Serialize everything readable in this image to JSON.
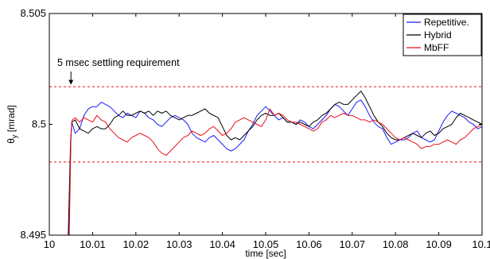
{
  "chart_data": {
    "type": "line",
    "xlabel": "time [sec]",
    "ylabel": "θy [mrad]",
    "ylabel_main": "θ",
    "ylabel_sub": "y",
    "ylabel_unit": " [mrad]",
    "xlim": [
      10.0,
      10.1
    ],
    "ylim": [
      8.495,
      8.505
    ],
    "x_ticks": [
      10.0,
      10.01,
      10.02,
      10.03,
      10.04,
      10.05,
      10.06,
      10.07,
      10.08,
      10.09,
      10.1
    ],
    "x_tick_labels": [
      "10",
      "10.01",
      "10.02",
      "10.03",
      "10.04",
      "10.05",
      "10.06",
      "10.07",
      "10.08",
      "10.09",
      "10.1"
    ],
    "y_ticks": [
      8.495,
      8.5,
      8.505
    ],
    "y_tick_labels": [
      "8.495",
      "8.5",
      "8.505"
    ],
    "grid": false,
    "legend_position": "top-right",
    "reference_lines": [
      {
        "y": 8.5017,
        "style": "dashed",
        "color": "#e8101a"
      },
      {
        "y": 8.4983,
        "style": "dashed",
        "color": "#e8101a"
      }
    ],
    "annotation": {
      "text": "5 msec settling requirement",
      "arrow_x": 10.005,
      "arrow_y": 8.50175
    },
    "series": [
      {
        "name": "Repetitive.",
        "color": "#1a1aff",
        "x": [
          10.0045,
          10.005,
          10.0052,
          10.006,
          10.007,
          10.008,
          10.009,
          10.01,
          10.011,
          10.012,
          10.013,
          10.014,
          10.015,
          10.016,
          10.017,
          10.018,
          10.019,
          10.02,
          10.021,
          10.022,
          10.023,
          10.024,
          10.025,
          10.026,
          10.027,
          10.028,
          10.029,
          10.03,
          10.031,
          10.032,
          10.033,
          10.034,
          10.035,
          10.036,
          10.037,
          10.038,
          10.039,
          10.04,
          10.041,
          10.042,
          10.043,
          10.044,
          10.045,
          10.046,
          10.047,
          10.048,
          10.049,
          10.05,
          10.051,
          10.052,
          10.053,
          10.054,
          10.055,
          10.056,
          10.057,
          10.058,
          10.059,
          10.06,
          10.061,
          10.062,
          10.063,
          10.064,
          10.065,
          10.066,
          10.067,
          10.068,
          10.069,
          10.07,
          10.071,
          10.072,
          10.073,
          10.074,
          10.075,
          10.076,
          10.077,
          10.078,
          10.079,
          10.08,
          10.081,
          10.082,
          10.083,
          10.084,
          10.085,
          10.086,
          10.087,
          10.088,
          10.089,
          10.09,
          10.091,
          10.092,
          10.093,
          10.094,
          10.095,
          10.096,
          10.097,
          10.098,
          10.099,
          10.1
        ],
        "y": [
          8.4953,
          8.4994,
          8.5001,
          8.4996,
          8.4998,
          8.5004,
          8.5007,
          8.5008,
          8.5008,
          8.501,
          8.5009,
          8.5008,
          8.5006,
          8.5004,
          8.5003,
          8.5005,
          8.5004,
          8.5003,
          8.5006,
          8.5005,
          8.5003,
          8.5002,
          8.5,
          8.4999,
          8.5001,
          8.5003,
          8.5004,
          8.5003,
          8.5002,
          8.5,
          8.4996,
          8.4994,
          8.4993,
          8.4992,
          8.4994,
          8.4995,
          8.4993,
          8.4991,
          8.4989,
          8.4988,
          8.4989,
          8.4991,
          8.4993,
          8.4997,
          8.5,
          8.5004,
          8.5006,
          8.5008,
          8.5006,
          8.5004,
          8.5002,
          8.5003,
          8.5001,
          8.5001,
          8.5,
          8.5002,
          8.5001,
          8.4999,
          8.4998,
          8.5,
          8.5002,
          8.5004,
          8.5007,
          8.5009,
          8.5008,
          8.5006,
          8.5004,
          8.5007,
          8.501,
          8.5011,
          8.5008,
          8.5004,
          8.5001,
          8.4999,
          8.4998,
          8.4994,
          8.4991,
          8.4992,
          8.4993,
          8.4993,
          8.4994,
          8.4996,
          8.4997,
          8.4994,
          8.4993,
          8.4992,
          8.4993,
          8.4997,
          8.5001,
          8.5004,
          8.5006,
          8.5005,
          8.5004,
          8.5003,
          8.5001,
          8.5,
          8.4998,
          8.4999
        ]
      },
      {
        "name": "Hybrid",
        "color": "#000000",
        "x": [
          10.0044,
          10.0049,
          10.0052,
          10.006,
          10.007,
          10.008,
          10.009,
          10.01,
          10.011,
          10.012,
          10.013,
          10.014,
          10.015,
          10.016,
          10.017,
          10.018,
          10.019,
          10.02,
          10.021,
          10.022,
          10.023,
          10.024,
          10.025,
          10.026,
          10.027,
          10.028,
          10.029,
          10.03,
          10.031,
          10.032,
          10.033,
          10.034,
          10.035,
          10.036,
          10.037,
          10.038,
          10.039,
          10.04,
          10.041,
          10.042,
          10.043,
          10.044,
          10.045,
          10.046,
          10.047,
          10.048,
          10.049,
          10.05,
          10.051,
          10.052,
          10.053,
          10.054,
          10.055,
          10.056,
          10.057,
          10.058,
          10.059,
          10.06,
          10.061,
          10.062,
          10.063,
          10.064,
          10.065,
          10.066,
          10.067,
          10.068,
          10.069,
          10.07,
          10.071,
          10.072,
          10.073,
          10.074,
          10.075,
          10.076,
          10.077,
          10.078,
          10.079,
          10.08,
          10.081,
          10.082,
          10.083,
          10.084,
          10.085,
          10.086,
          10.087,
          10.088,
          10.089,
          10.09,
          10.091,
          10.092,
          10.093,
          10.094,
          10.095,
          10.096,
          10.097,
          10.098,
          10.099,
          10.1
        ],
        "y": [
          8.4951,
          8.4992,
          8.5001,
          8.5002,
          8.4998,
          8.4997,
          8.4996,
          8.4998,
          8.4999,
          8.4998,
          8.4998,
          8.5,
          8.5003,
          8.5004,
          8.5006,
          8.5004,
          8.5004,
          8.5005,
          8.5006,
          8.5005,
          8.5006,
          8.5004,
          8.5006,
          8.5005,
          8.5006,
          8.5004,
          8.5003,
          8.5002,
          8.5003,
          8.5004,
          8.5004,
          8.5005,
          8.5006,
          8.5007,
          8.5005,
          8.5004,
          8.5003,
          8.4999,
          8.4995,
          8.4993,
          8.4994,
          8.4993,
          8.4995,
          8.4997,
          8.4999,
          8.5002,
          8.5004,
          8.5005,
          8.5004,
          8.5004,
          8.5005,
          8.5003,
          8.5001,
          8.5001,
          8.5,
          8.5001,
          8.5,
          8.4999,
          8.5001,
          8.5002,
          8.5004,
          8.5005,
          8.5007,
          8.5009,
          8.501,
          8.5009,
          8.5009,
          8.5011,
          8.5013,
          8.5015,
          8.5012,
          8.5008,
          8.5004,
          8.5001,
          8.4999,
          8.4996,
          8.4994,
          8.4993,
          8.4993,
          8.4994,
          8.4995,
          8.4996,
          8.4995,
          8.4994,
          8.4996,
          8.4997,
          8.4995,
          8.4996,
          8.4998,
          8.4999,
          8.5,
          8.5003,
          8.5005,
          8.5004,
          8.5003,
          8.5002,
          8.5001,
          8.5
        ]
      },
      {
        "name": "MbFF",
        "color": "#e8101a",
        "x": [
          10.0046,
          10.005,
          10.0053,
          10.006,
          10.007,
          10.008,
          10.009,
          10.01,
          10.011,
          10.012,
          10.013,
          10.014,
          10.015,
          10.016,
          10.017,
          10.018,
          10.019,
          10.02,
          10.021,
          10.022,
          10.023,
          10.024,
          10.025,
          10.026,
          10.027,
          10.028,
          10.029,
          10.03,
          10.031,
          10.032,
          10.033,
          10.034,
          10.035,
          10.036,
          10.037,
          10.038,
          10.039,
          10.04,
          10.041,
          10.042,
          10.043,
          10.044,
          10.045,
          10.046,
          10.047,
          10.048,
          10.049,
          10.05,
          10.051,
          10.052,
          10.053,
          10.054,
          10.055,
          10.056,
          10.057,
          10.058,
          10.059,
          10.06,
          10.061,
          10.062,
          10.063,
          10.064,
          10.065,
          10.066,
          10.067,
          10.068,
          10.069,
          10.07,
          10.071,
          10.072,
          10.073,
          10.074,
          10.075,
          10.076,
          10.077,
          10.078,
          10.079,
          10.08,
          10.081,
          10.082,
          10.083,
          10.084,
          10.085,
          10.086,
          10.087,
          10.088,
          10.089,
          10.09,
          10.091,
          10.092,
          10.093,
          10.094,
          10.095,
          10.096,
          10.097,
          10.098,
          10.099,
          10.1
        ],
        "y": [
          8.4949,
          8.4995,
          8.5002,
          8.5003,
          8.5001,
          8.5003,
          8.5002,
          8.5001,
          8.5004,
          8.5002,
          8.5001,
          8.4998,
          8.4996,
          8.4994,
          8.4993,
          8.4992,
          8.4994,
          8.4995,
          8.4996,
          8.4995,
          8.4994,
          8.4992,
          8.4989,
          8.4987,
          8.4986,
          8.4988,
          8.499,
          8.4992,
          8.4994,
          8.4995,
          8.4997,
          8.4996,
          8.4995,
          8.4996,
          8.4998,
          8.4999,
          8.4997,
          8.4995,
          8.4996,
          8.4998,
          8.5001,
          8.5002,
          8.5003,
          8.5002,
          8.5001,
          8.5,
          8.4999,
          8.5002,
          8.5007,
          8.5004,
          8.5005,
          8.5004,
          8.5002,
          8.5001,
          8.5001,
          8.5,
          8.4999,
          8.4998,
          8.4997,
          8.4998,
          8.5001,
          8.5002,
          8.5004,
          8.5003,
          8.5004,
          8.5005,
          8.5004,
          8.5004,
          8.5003,
          8.5002,
          8.5002,
          8.5001,
          8.5002,
          8.5001,
          8.5,
          8.4998,
          8.4996,
          8.4994,
          8.4993,
          8.4994,
          8.4993,
          8.4992,
          8.4991,
          8.4989,
          8.499,
          8.499,
          8.4991,
          8.4991,
          8.4992,
          8.4993,
          8.4992,
          8.4991,
          8.4993,
          8.4994,
          8.4996,
          8.4998,
          8.4999,
          8.5
        ]
      }
    ]
  }
}
